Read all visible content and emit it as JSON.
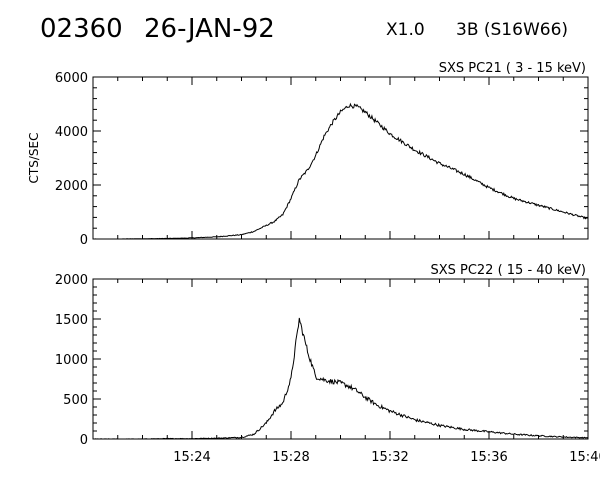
{
  "header": {
    "event_id": "02360",
    "date": "26-JAN-92",
    "goes_class": "X1.0",
    "optical_class": "3B (S16W66)"
  },
  "chart_data": [
    {
      "type": "line",
      "title": "SXS PC21  (  3 - 15 keV)",
      "ylabel": "CTS/SEC",
      "xlabel": "",
      "ylim": [
        0,
        6000
      ],
      "yticks": [
        "0",
        "2000",
        "4000",
        "6000"
      ],
      "xlim": [
        "15:20",
        "15:40"
      ],
      "xticks": [],
      "grid": false,
      "series": [
        {
          "x": [
            "15:20",
            "15:21",
            "15:22",
            "15:23",
            "15:24",
            "15:25",
            "15:26",
            "15:26:30",
            "15:27",
            "15:27:20",
            "15:27:40",
            "15:28",
            "15:28:20",
            "15:28:40",
            "15:29",
            "15:29:20",
            "15:29:40",
            "15:30",
            "15:30:20",
            "15:30:40",
            "15:31",
            "15:31:30",
            "15:32",
            "15:33",
            "15:34",
            "15:35",
            "15:36",
            "15:37",
            "15:38",
            "15:39",
            "15:40"
          ],
          "y": [
            0,
            0,
            10,
            20,
            40,
            80,
            160,
            280,
            500,
            650,
            900,
            1500,
            2200,
            2550,
            3100,
            3800,
            4300,
            4700,
            4950,
            4900,
            4700,
            4300,
            3900,
            3300,
            2800,
            2400,
            1900,
            1500,
            1250,
            1000,
            750
          ]
        }
      ]
    },
    {
      "type": "line",
      "title": "SXS PC22  ( 15 - 40 keV)",
      "ylabel": "",
      "xlabel": "",
      "ylim": [
        0,
        2000
      ],
      "yticks": [
        "0",
        "500",
        "1000",
        "1500",
        "2000"
      ],
      "xlim": [
        "15:20",
        "15:40"
      ],
      "xticks": [
        "15:24",
        "15:28",
        "15:32",
        "15:36",
        "15:40"
      ],
      "grid": false,
      "series": [
        {
          "x": [
            "15:20",
            "15:21",
            "15:22",
            "15:23",
            "15:24",
            "15:25",
            "15:26",
            "15:26:30",
            "15:27",
            "15:27:20",
            "15:27:40",
            "15:28",
            "15:28:20",
            "15:28:40",
            "15:29",
            "15:29:20",
            "15:29:40",
            "15:30",
            "15:30:20",
            "15:30:40",
            "15:31",
            "15:31:30",
            "15:32",
            "15:33",
            "15:34",
            "15:35",
            "15:36",
            "15:37",
            "15:38",
            "15:39",
            "15:40"
          ],
          "y": [
            0,
            0,
            0,
            5,
            5,
            10,
            20,
            60,
            200,
            350,
            450,
            750,
            1500,
            1100,
            780,
            740,
            720,
            700,
            660,
            600,
            520,
            420,
            350,
            240,
            170,
            120,
            90,
            60,
            40,
            25,
            15
          ]
        }
      ]
    }
  ]
}
